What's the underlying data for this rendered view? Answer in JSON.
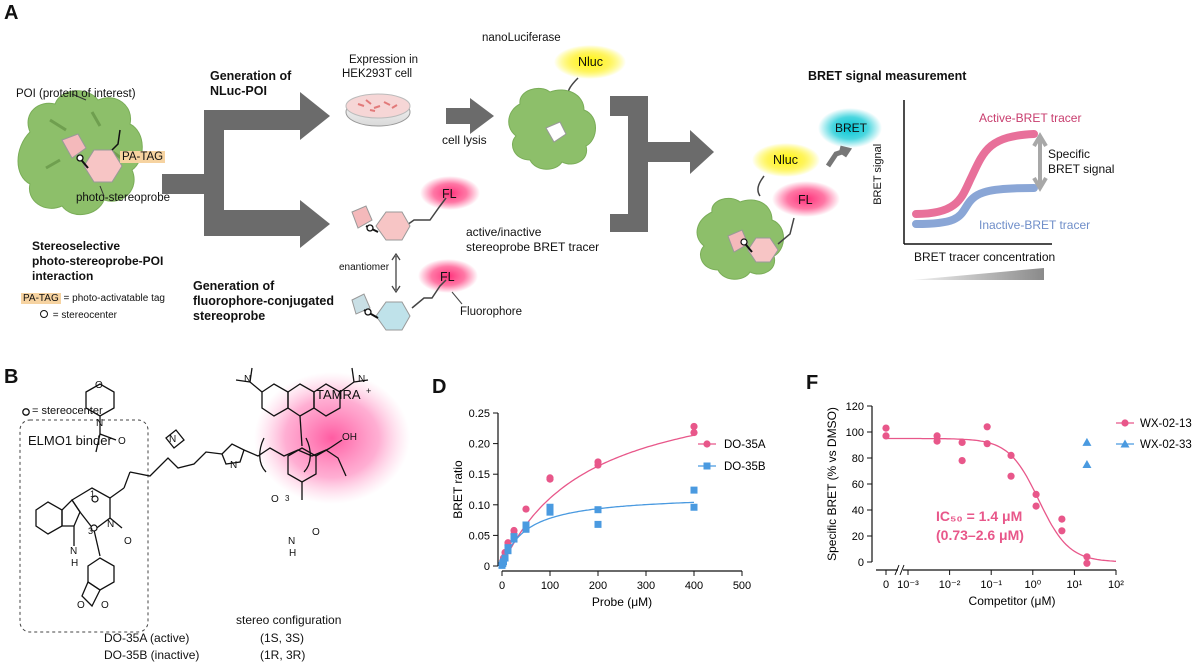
{
  "panelA": {
    "letter": "A",
    "poi_label": "POI (protein of interest)",
    "pa_tag": "PA-TAG",
    "probe_label": "photo-stereoprobe",
    "interaction_title": [
      "Stereoselective",
      "photo-stereoprobe-POI",
      "interaction"
    ],
    "legend_tag_text": " = photo-activatable tag",
    "legend_center_text": " = stereocenter",
    "gen_nluc": [
      "Generation of",
      "NLuc-POI"
    ],
    "expression": [
      "Expression in",
      "HEK293T cell"
    ],
    "cell_lysis": "cell lysis",
    "nanoluciferase": "nanoLuciferase",
    "nluc": "Nluc",
    "fl": "FL",
    "enantiomer": "enantiomer",
    "fluorophore": "Fluorophore",
    "gen_fl": [
      "Generation of",
      "fluorophore-conjugated",
      "stereoprobe"
    ],
    "tracer": [
      "active/inactive",
      "stereoprobe BRET tracer"
    ],
    "bret": "BRET",
    "measurement_title": "BRET signal measurement",
    "active_tracer": "Active-BRET tracer",
    "inactive_tracer": "Inactive-BRET tracer",
    "specific_signal": [
      "Specific",
      "BRET signal"
    ],
    "y_axis": "BRET signal",
    "x_axis": "BRET tracer concentration"
  },
  "panelB": {
    "letter": "B",
    "stereocenter": " = stereocenter",
    "binder": "ELMO1 binder",
    "tamra": "TAMRA",
    "config_header": "stereo configuration",
    "rows": [
      {
        "name": "DO-35A (active)",
        "config": "(1S, 3S)"
      },
      {
        "name": "DO-35B (inactive)",
        "config": "(1R, 3R)"
      }
    ],
    "atoms": {
      "o": "O",
      "n": "N",
      "h": "H",
      "oh": "OH",
      "plus": "+",
      "one": "1",
      "three": "3",
      "sub3": "3"
    }
  },
  "panelD": {
    "letter": "D"
  },
  "panelF": {
    "letter": "F",
    "ic50": "IC₅₀ = 1.4 μM",
    "ci": "(0.73–2.6 μM)"
  },
  "chart_data": [
    {
      "type": "scatter",
      "panel": "D",
      "xlabel": "Probe (μM)",
      "ylabel": "BRET ratio",
      "xlim": [
        0,
        500
      ],
      "ylim": [
        0,
        0.25
      ],
      "xticks": [
        "0",
        "100",
        "200",
        "300",
        "400",
        "500"
      ],
      "yticks": [
        "0",
        "0.05",
        "0.10",
        "0.15",
        "0.20",
        "0.25"
      ],
      "legend": "right",
      "series": [
        {
          "name": "DO-35A",
          "color": "#e8578a",
          "marker": "circle",
          "points": [
            [
              0,
              0.002
            ],
            [
              1.6,
              0.008
            ],
            [
              3.1,
              0.013
            ],
            [
              6.3,
              0.022
            ],
            [
              12.5,
              0.034
            ],
            [
              12.5,
              0.038
            ],
            [
              25,
              0.058
            ],
            [
              25,
              0.052
            ],
            [
              50,
              0.093
            ],
            [
              100,
              0.142
            ],
            [
              100,
              0.144
            ],
            [
              200,
              0.165
            ],
            [
              200,
              0.17
            ],
            [
              400,
              0.218
            ],
            [
              400,
              0.228
            ]
          ],
          "fit": {
            "bmax": 0.31,
            "kd": 180
          }
        },
        {
          "name": "DO-35B",
          "color": "#4a9ae0",
          "marker": "square",
          "points": [
            [
              0,
              0.001
            ],
            [
              1.6,
              0.004
            ],
            [
              3.1,
              0.007
            ],
            [
              6.3,
              0.013
            ],
            [
              12.5,
              0.025
            ],
            [
              12.5,
              0.03
            ],
            [
              25,
              0.044
            ],
            [
              25,
              0.048
            ],
            [
              50,
              0.06
            ],
            [
              50,
              0.067
            ],
            [
              100,
              0.088
            ],
            [
              100,
              0.096
            ],
            [
              200,
              0.068
            ],
            [
              200,
              0.092
            ],
            [
              400,
              0.096
            ],
            [
              400,
              0.124
            ]
          ],
          "fit": {
            "bmax": 0.117,
            "kd": 50
          }
        }
      ]
    },
    {
      "type": "scatter",
      "panel": "F",
      "xlabel": "Competitor (μM)",
      "ylabel": "Specific BRET (% vs DMSO)",
      "xscale": "log",
      "xlim": [
        0.001,
        100
      ],
      "ylim": [
        0,
        120
      ],
      "xticks": [
        "0",
        "10⁻³",
        "10⁻²",
        "10⁻¹",
        "10⁰",
        "10¹",
        "10²"
      ],
      "yticks": [
        "0",
        "20",
        "40",
        "60",
        "80",
        "100",
        "120"
      ],
      "legend": "top-right",
      "series": [
        {
          "name": "WX-02-13",
          "color": "#e8578a",
          "marker": "circle",
          "zero_points": [
            103,
            97
          ],
          "points": [
            [
              0.005,
              97
            ],
            [
              0.005,
              93
            ],
            [
              0.02,
              92
            ],
            [
              0.02,
              78
            ],
            [
              0.08,
              104
            ],
            [
              0.08,
              91
            ],
            [
              0.3,
              82
            ],
            [
              0.3,
              66
            ],
            [
              1.2,
              52
            ],
            [
              1.2,
              43
            ],
            [
              5,
              33
            ],
            [
              5,
              24
            ],
            [
              20,
              4
            ],
            [
              20,
              -1
            ]
          ],
          "fit": {
            "top": 95,
            "bottom": 0,
            "ic50": 1.4,
            "hill": 1.2
          }
        },
        {
          "name": "WX-02-33",
          "color": "#4a9ae0",
          "marker": "triangle",
          "points": [
            [
              20,
              92
            ],
            [
              20,
              75
            ]
          ]
        }
      ]
    }
  ]
}
